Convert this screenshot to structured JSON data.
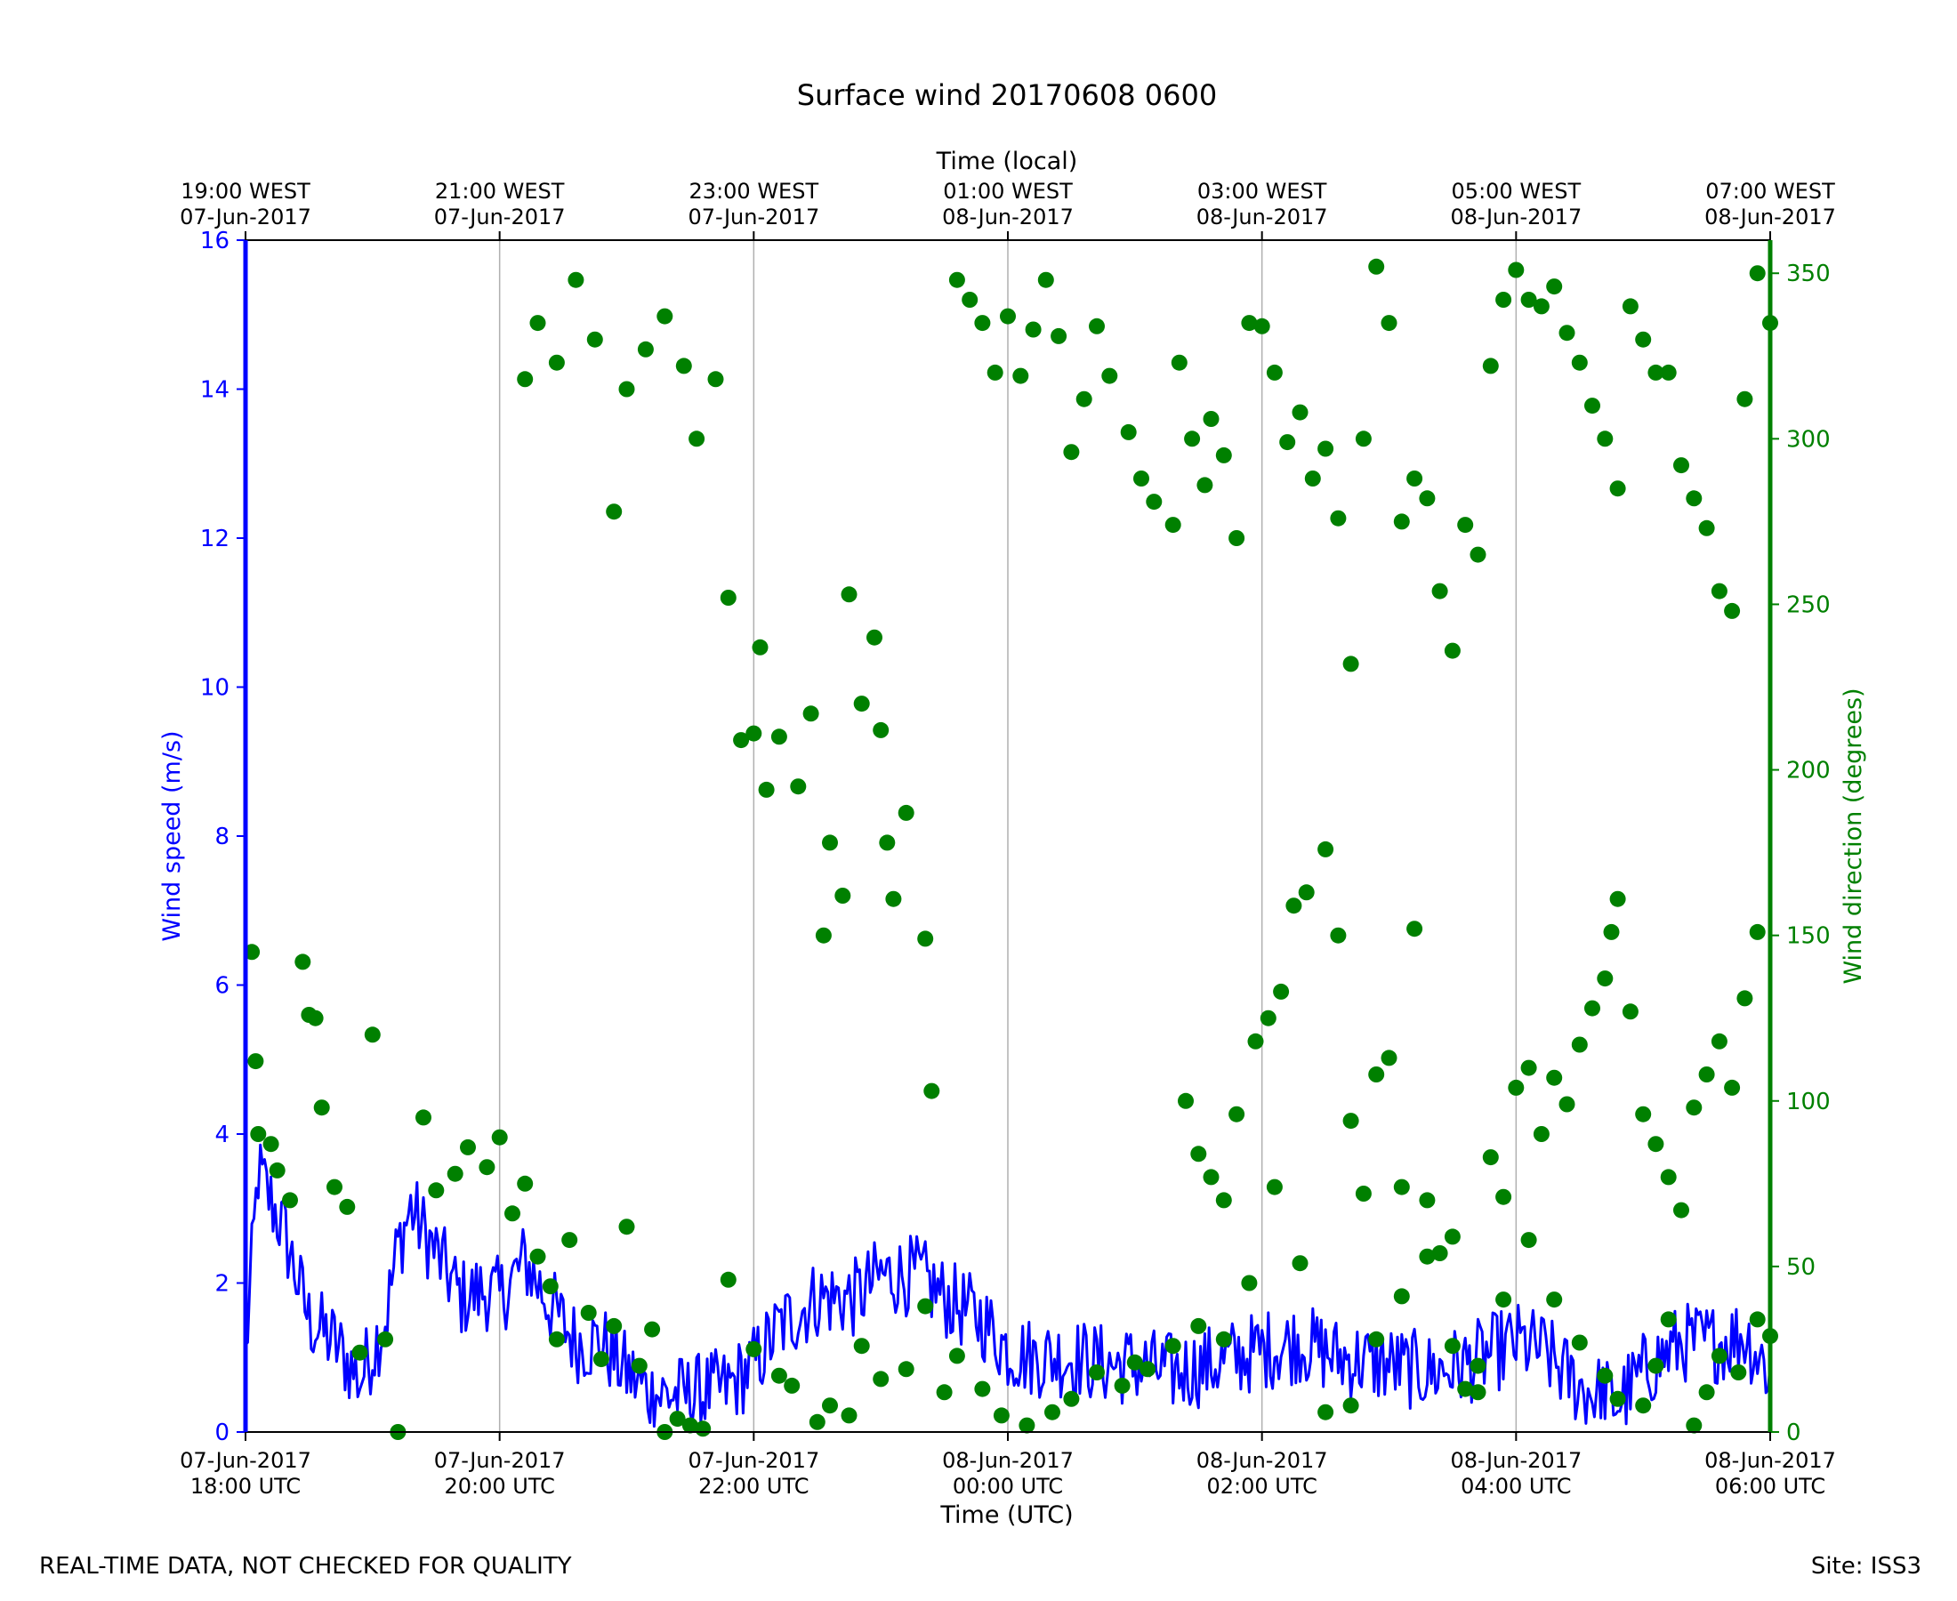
{
  "chart_data": {
    "type": "line+scatter",
    "title": "Surface wind 20170608 0600",
    "x_bottom_label": "Time (UTC)",
    "x_top_label": "Time (local)",
    "y_left_label": "Wind speed (m/s)",
    "y_right_label": "Wind direction (degrees)",
    "xlim_hours": [
      0,
      12
    ],
    "y_left_lim": [
      0,
      16
    ],
    "y_right_lim": [
      0,
      360
    ],
    "y_left_ticks": [
      0,
      2,
      4,
      6,
      8,
      10,
      12,
      14,
      16
    ],
    "y_right_ticks": [
      0,
      50,
      100,
      150,
      200,
      250,
      300,
      350
    ],
    "x_ticks_hours": [
      0,
      2,
      4,
      6,
      8,
      10,
      12
    ],
    "x_bottom_tick_labels": [
      [
        "07-Jun-2017",
        "18:00 UTC"
      ],
      [
        "07-Jun-2017",
        "20:00 UTC"
      ],
      [
        "07-Jun-2017",
        "22:00 UTC"
      ],
      [
        "08-Jun-2017",
        "00:00 UTC"
      ],
      [
        "08-Jun-2017",
        "02:00 UTC"
      ],
      [
        "08-Jun-2017",
        "04:00 UTC"
      ],
      [
        "08-Jun-2017",
        "06:00 UTC"
      ]
    ],
    "x_top_tick_labels": [
      [
        "19:00 WEST",
        "07-Jun-2017"
      ],
      [
        "21:00 WEST",
        "07-Jun-2017"
      ],
      [
        "23:00 WEST",
        "07-Jun-2017"
      ],
      [
        "01:00 WEST",
        "08-Jun-2017"
      ],
      [
        "03:00 WEST",
        "08-Jun-2017"
      ],
      [
        "05:00 WEST",
        "08-Jun-2017"
      ],
      [
        "07:00 WEST",
        "08-Jun-2017"
      ]
    ],
    "grid": "vertical at x ticks",
    "colors": {
      "speed": "#0000ff",
      "direction": "#008000",
      "grid": "#b0b0b0",
      "axes": "#000000"
    },
    "series": [
      {
        "name": "Wind speed",
        "axis": "left",
        "style": "line",
        "keyframes": [
          [
            0.0,
            1.0
          ],
          [
            0.1,
            3.5
          ],
          [
            0.3,
            2.7
          ],
          [
            0.5,
            1.5
          ],
          [
            0.7,
            1.2
          ],
          [
            0.9,
            0.7
          ],
          [
            1.1,
            1.5
          ],
          [
            1.2,
            2.5
          ],
          [
            1.3,
            3.0
          ],
          [
            1.5,
            2.4
          ],
          [
            1.7,
            1.8
          ],
          [
            1.9,
            1.9
          ],
          [
            2.0,
            1.8
          ],
          [
            2.2,
            2.3
          ],
          [
            2.4,
            1.7
          ],
          [
            2.6,
            1.2
          ],
          [
            2.8,
            1.2
          ],
          [
            3.0,
            0.8
          ],
          [
            3.2,
            0.5
          ],
          [
            3.5,
            0.5
          ],
          [
            3.8,
            0.6
          ],
          [
            4.0,
            0.9
          ],
          [
            4.2,
            1.4
          ],
          [
            4.5,
            1.8
          ],
          [
            4.8,
            1.8
          ],
          [
            5.0,
            2.1
          ],
          [
            5.3,
            2.1
          ],
          [
            5.5,
            1.8
          ],
          [
            5.8,
            1.5
          ],
          [
            6.0,
            1.1
          ],
          [
            6.2,
            1.0
          ],
          [
            6.5,
            1.0
          ],
          [
            6.8,
            0.9
          ],
          [
            7.0,
            0.9
          ],
          [
            7.3,
            0.8
          ],
          [
            7.6,
            0.9
          ],
          [
            8.0,
            1.1
          ],
          [
            8.3,
            1.2
          ],
          [
            8.6,
            1.0
          ],
          [
            9.0,
            0.9
          ],
          [
            9.3,
            0.8
          ],
          [
            9.6,
            0.9
          ],
          [
            10.0,
            1.2
          ],
          [
            10.2,
            1.1
          ],
          [
            10.5,
            0.6
          ],
          [
            10.8,
            0.4
          ],
          [
            11.0,
            0.8
          ],
          [
            11.3,
            1.2
          ],
          [
            11.6,
            1.2
          ],
          [
            11.8,
            1.3
          ],
          [
            12.0,
            0.8
          ]
        ],
        "noise_amplitude": 0.55,
        "samples": 720
      },
      {
        "name": "Wind direction",
        "axis": "right",
        "style": "markers",
        "points": [
          [
            0.05,
            145
          ],
          [
            0.08,
            112
          ],
          [
            0.1,
            90
          ],
          [
            0.2,
            87
          ],
          [
            0.25,
            79
          ],
          [
            0.35,
            70
          ],
          [
            0.45,
            142
          ],
          [
            0.5,
            126
          ],
          [
            0.55,
            125
          ],
          [
            0.6,
            98
          ],
          [
            0.7,
            74
          ],
          [
            0.8,
            68
          ],
          [
            0.9,
            24
          ],
          [
            1.0,
            120
          ],
          [
            1.1,
            28
          ],
          [
            1.2,
            0
          ],
          [
            1.4,
            95
          ],
          [
            1.5,
            73
          ],
          [
            1.65,
            78
          ],
          [
            1.75,
            86
          ],
          [
            1.9,
            80
          ],
          [
            2.0,
            89
          ],
          [
            2.1,
            66
          ],
          [
            2.2,
            75
          ],
          [
            2.3,
            53
          ],
          [
            2.4,
            44
          ],
          [
            2.45,
            28
          ],
          [
            2.55,
            58
          ],
          [
            2.7,
            36
          ],
          [
            2.8,
            22
          ],
          [
            2.9,
            32
          ],
          [
            3.0,
            62
          ],
          [
            3.1,
            20
          ],
          [
            3.2,
            31
          ],
          [
            3.3,
            0
          ],
          [
            3.4,
            4
          ],
          [
            3.5,
            2
          ],
          [
            3.6,
            1
          ],
          [
            3.8,
            46
          ],
          [
            4.0,
            25
          ],
          [
            4.2,
            17
          ],
          [
            4.3,
            14
          ],
          [
            4.5,
            3
          ],
          [
            4.6,
            8
          ],
          [
            4.75,
            5
          ],
          [
            4.85,
            26
          ],
          [
            5.0,
            16
          ],
          [
            5.2,
            19
          ],
          [
            5.35,
            38
          ],
          [
            5.5,
            12
          ],
          [
            5.6,
            23
          ],
          [
            5.8,
            13
          ],
          [
            5.95,
            5
          ],
          [
            6.15,
            2
          ],
          [
            6.35,
            6
          ],
          [
            6.5,
            10
          ],
          [
            6.7,
            18
          ],
          [
            6.9,
            14
          ],
          [
            7.0,
            21
          ],
          [
            7.1,
            19
          ],
          [
            7.3,
            26
          ],
          [
            7.5,
            32
          ],
          [
            7.7,
            28
          ],
          [
            7.9,
            45
          ],
          [
            8.1,
            74
          ],
          [
            8.3,
            51
          ],
          [
            8.5,
            6
          ],
          [
            8.7,
            8
          ],
          [
            8.9,
            28
          ],
          [
            9.1,
            41
          ],
          [
            9.3,
            53
          ],
          [
            9.5,
            59
          ],
          [
            9.7,
            12
          ],
          [
            9.9,
            40
          ],
          [
            10.1,
            58
          ],
          [
            10.3,
            40
          ],
          [
            10.5,
            27
          ],
          [
            10.7,
            17
          ],
          [
            10.8,
            10
          ],
          [
            11.0,
            8
          ],
          [
            11.1,
            20
          ],
          [
            11.2,
            34
          ],
          [
            11.4,
            2
          ],
          [
            11.5,
            12
          ],
          [
            11.6,
            23
          ],
          [
            11.75,
            18
          ],
          [
            11.9,
            34
          ],
          [
            12.0,
            29
          ],
          [
            2.2,
            318
          ],
          [
            2.3,
            335
          ],
          [
            2.45,
            323
          ],
          [
            2.6,
            348
          ],
          [
            2.75,
            330
          ],
          [
            2.9,
            278
          ],
          [
            3.0,
            315
          ],
          [
            3.15,
            327
          ],
          [
            3.3,
            337
          ],
          [
            3.45,
            322
          ],
          [
            3.55,
            300
          ],
          [
            3.7,
            318
          ],
          [
            3.8,
            252
          ],
          [
            3.9,
            209
          ],
          [
            4.0,
            211
          ],
          [
            4.05,
            237
          ],
          [
            4.1,
            194
          ],
          [
            4.2,
            210
          ],
          [
            4.35,
            195
          ],
          [
            4.45,
            217
          ],
          [
            4.55,
            150
          ],
          [
            4.6,
            178
          ],
          [
            4.7,
            162
          ],
          [
            4.75,
            253
          ],
          [
            4.85,
            220
          ],
          [
            4.95,
            240
          ],
          [
            5.0,
            212
          ],
          [
            5.05,
            178
          ],
          [
            5.1,
            161
          ],
          [
            5.2,
            187
          ],
          [
            5.35,
            149
          ],
          [
            5.4,
            103
          ],
          [
            5.6,
            348
          ],
          [
            5.7,
            342
          ],
          [
            5.8,
            335
          ],
          [
            5.9,
            320
          ],
          [
            6.0,
            337
          ],
          [
            6.1,
            319
          ],
          [
            6.2,
            333
          ],
          [
            6.3,
            348
          ],
          [
            6.4,
            331
          ],
          [
            6.5,
            296
          ],
          [
            6.6,
            312
          ],
          [
            6.7,
            334
          ],
          [
            6.8,
            319
          ],
          [
            6.95,
            302
          ],
          [
            7.05,
            288
          ],
          [
            7.15,
            281
          ],
          [
            7.3,
            274
          ],
          [
            7.35,
            323
          ],
          [
            7.45,
            300
          ],
          [
            7.55,
            286
          ],
          [
            7.6,
            306
          ],
          [
            7.7,
            295
          ],
          [
            7.8,
            270
          ],
          [
            7.9,
            335
          ],
          [
            8.0,
            334
          ],
          [
            8.1,
            320
          ],
          [
            8.2,
            299
          ],
          [
            8.3,
            308
          ],
          [
            8.4,
            288
          ],
          [
            8.5,
            297
          ],
          [
            8.6,
            276
          ],
          [
            8.7,
            232
          ],
          [
            8.8,
            300
          ],
          [
            8.9,
            352
          ],
          [
            9.0,
            335
          ],
          [
            9.1,
            275
          ],
          [
            9.2,
            288
          ],
          [
            9.3,
            282
          ],
          [
            9.4,
            254
          ],
          [
            9.5,
            236
          ],
          [
            9.6,
            274
          ],
          [
            9.7,
            265
          ],
          [
            9.8,
            322
          ],
          [
            9.9,
            342
          ],
          [
            10.0,
            351
          ],
          [
            10.1,
            342
          ],
          [
            10.2,
            340
          ],
          [
            10.3,
            346
          ],
          [
            10.4,
            332
          ],
          [
            10.5,
            323
          ],
          [
            10.6,
            310
          ],
          [
            10.7,
            300
          ],
          [
            10.8,
            285
          ],
          [
            10.9,
            340
          ],
          [
            11.0,
            330
          ],
          [
            11.1,
            320
          ],
          [
            11.2,
            320
          ],
          [
            11.3,
            292
          ],
          [
            11.4,
            282
          ],
          [
            11.5,
            273
          ],
          [
            11.6,
            254
          ],
          [
            11.7,
            248
          ],
          [
            11.8,
            312
          ],
          [
            11.9,
            350
          ],
          [
            12.0,
            335
          ],
          [
            7.4,
            100
          ],
          [
            7.5,
            84
          ],
          [
            7.6,
            77
          ],
          [
            7.7,
            70
          ],
          [
            7.8,
            96
          ],
          [
            7.95,
            118
          ],
          [
            8.05,
            125
          ],
          [
            8.15,
            133
          ],
          [
            8.25,
            159
          ],
          [
            8.35,
            163
          ],
          [
            8.5,
            176
          ],
          [
            8.6,
            150
          ],
          [
            8.7,
            94
          ],
          [
            8.8,
            72
          ],
          [
            8.9,
            108
          ],
          [
            9.0,
            113
          ],
          [
            9.1,
            74
          ],
          [
            9.2,
            152
          ],
          [
            9.3,
            70
          ],
          [
            9.4,
            54
          ],
          [
            9.5,
            26
          ],
          [
            9.6,
            13
          ],
          [
            9.7,
            20
          ],
          [
            9.8,
            83
          ],
          [
            9.9,
            71
          ],
          [
            10.0,
            104
          ],
          [
            10.1,
            110
          ],
          [
            10.2,
            90
          ],
          [
            10.3,
            107
          ],
          [
            10.4,
            99
          ],
          [
            10.5,
            117
          ],
          [
            10.6,
            128
          ],
          [
            10.7,
            137
          ],
          [
            10.75,
            151
          ],
          [
            10.8,
            161
          ],
          [
            10.9,
            127
          ],
          [
            11.0,
            96
          ],
          [
            11.1,
            87
          ],
          [
            11.2,
            77
          ],
          [
            11.3,
            67
          ],
          [
            11.4,
            98
          ],
          [
            11.5,
            108
          ],
          [
            11.6,
            118
          ],
          [
            11.7,
            104
          ],
          [
            11.8,
            131
          ],
          [
            11.9,
            151
          ]
        ]
      }
    ]
  },
  "footer": {
    "left": "REAL-TIME DATA, NOT CHECKED FOR QUALITY",
    "right": "Site: ISS3"
  }
}
